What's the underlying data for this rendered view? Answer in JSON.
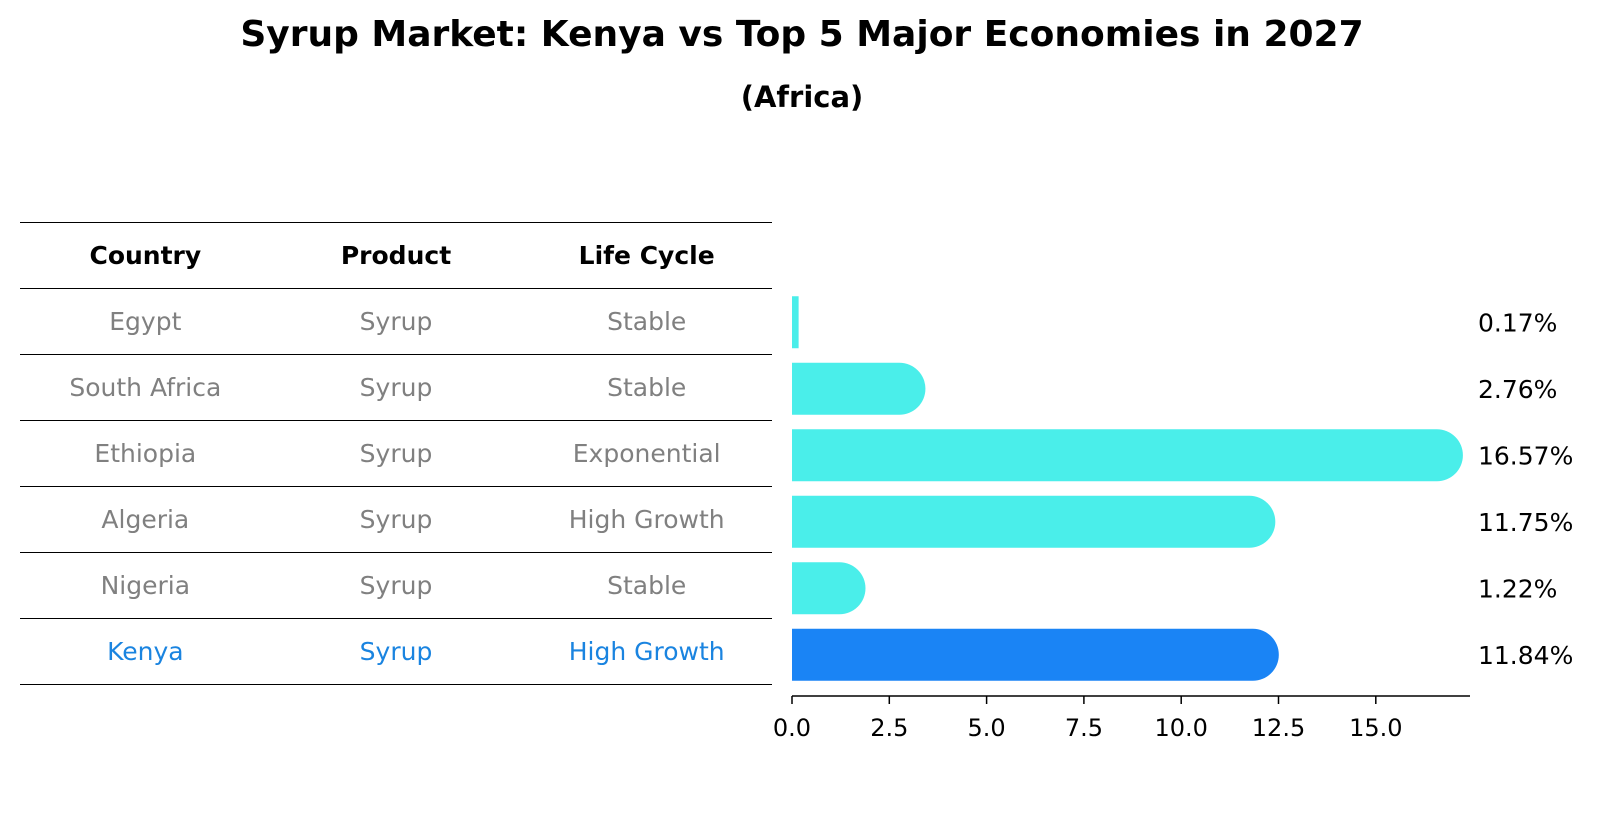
{
  "title": "Syrup Market: Kenya vs Top 5 Major Economies in 2027",
  "subtitle": "(Africa)",
  "table": {
    "headers": [
      "Country",
      "Product",
      "Life Cycle"
    ],
    "rows": [
      {
        "country": "Egypt",
        "product": "Syrup",
        "life_cycle": "Stable"
      },
      {
        "country": "South Africa",
        "product": "Syrup",
        "life_cycle": "Stable"
      },
      {
        "country": "Ethiopia",
        "product": "Syrup",
        "life_cycle": "Exponential"
      },
      {
        "country": "Algeria",
        "product": "Syrup",
        "life_cycle": "High Growth"
      },
      {
        "country": "Nigeria",
        "product": "Syrup",
        "life_cycle": "Stable"
      },
      {
        "country": "Kenya",
        "product": "Syrup",
        "life_cycle": "High Growth"
      }
    ]
  },
  "colors": {
    "bar": "#4aeeea",
    "highlight_bar": "#1a84f5",
    "highlight_text": "#1a84e0",
    "muted_text": "#808080"
  },
  "chart_data": {
    "type": "bar",
    "orientation": "horizontal",
    "title": "Syrup Market: Kenya vs Top 5 Major Economies in 2027",
    "subtitle": "(Africa)",
    "categories": [
      "Egypt",
      "South Africa",
      "Ethiopia",
      "Algeria",
      "Nigeria",
      "Kenya"
    ],
    "values": [
      0.17,
      2.76,
      16.57,
      11.75,
      1.22,
      11.84
    ],
    "value_labels": [
      "0.17%",
      "2.76%",
      "16.57%",
      "11.75%",
      "1.22%",
      "11.84%"
    ],
    "highlight": "Kenya",
    "xlim": [
      0,
      17.5
    ],
    "xticks": [
      0,
      2.5,
      5,
      7.5,
      10,
      12.5,
      15
    ],
    "xtick_labels": [
      "0.0",
      "2.5",
      "5.0",
      "7.5",
      "10.0",
      "12.5",
      "15.0"
    ],
    "xlabel": "",
    "ylabel": "",
    "grid": false
  }
}
